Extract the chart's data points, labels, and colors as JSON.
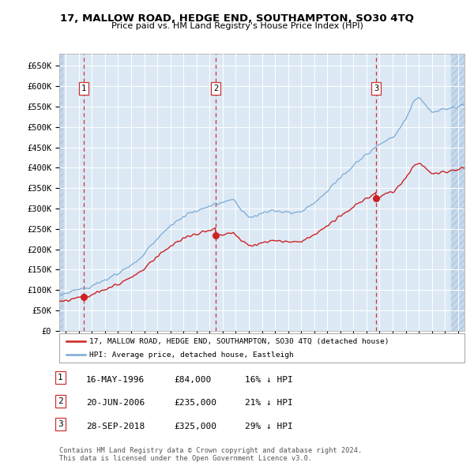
{
  "title": "17, MALLOW ROAD, HEDGE END, SOUTHAMPTON, SO30 4TQ",
  "subtitle": "Price paid vs. HM Land Registry's House Price Index (HPI)",
  "legend_line1": "17, MALLOW ROAD, HEDGE END, SOUTHAMPTON, SO30 4TQ (detached house)",
  "legend_line2": "HPI: Average price, detached house, Eastleigh",
  "footnote1": "Contains HM Land Registry data © Crown copyright and database right 2024.",
  "footnote2": "This data is licensed under the Open Government Licence v3.0.",
  "sale_labels": [
    "1",
    "2",
    "3"
  ],
  "sale_dates": [
    1996.37,
    2006.47,
    2018.74
  ],
  "sale_prices": [
    84000,
    235000,
    325000
  ],
  "table_rows": [
    {
      "num": "1",
      "date": "16-MAY-1996",
      "price": "£84,000",
      "hpi": "16% ↓ HPI"
    },
    {
      "num": "2",
      "date": "20-JUN-2006",
      "price": "£235,000",
      "hpi": "21% ↓ HPI"
    },
    {
      "num": "3",
      "date": "28-SEP-2018",
      "price": "£325,000",
      "hpi": "29% ↓ HPI"
    }
  ],
  "xmin": 1994.5,
  "xmax": 2025.5,
  "ymin": 0,
  "ymax": 680000,
  "yticks": [
    0,
    50000,
    100000,
    150000,
    200000,
    250000,
    300000,
    350000,
    400000,
    450000,
    500000,
    550000,
    600000,
    650000
  ],
  "ytick_labels": [
    "£0",
    "£50K",
    "£100K",
    "£150K",
    "£200K",
    "£250K",
    "£300K",
    "£350K",
    "£400K",
    "£450K",
    "£500K",
    "£550K",
    "£600K",
    "£650K"
  ],
  "hpi_color": "#7aaad4",
  "price_color": "#cc2222",
  "background_plot": "#dce9f5",
  "background_hatch_color": "#c5d8ec",
  "grid_color": "#ffffff",
  "vline_color": "#cc3333",
  "dot_color": "#cc2222",
  "hatch_left_end": 1994.83,
  "hatch_right_start": 2024.5
}
